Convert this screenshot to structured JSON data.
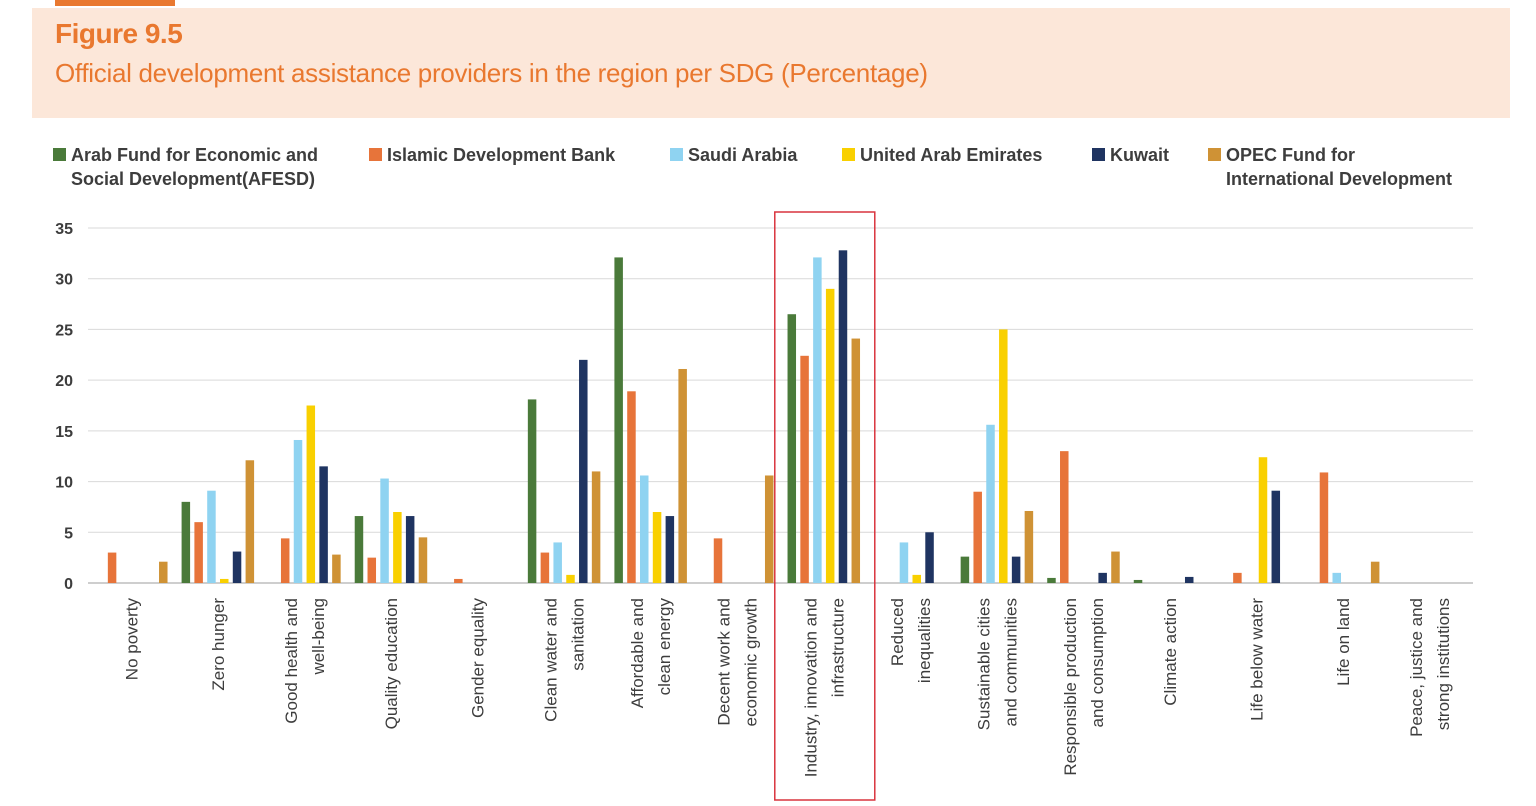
{
  "header": {
    "figure_label": "Figure 9.5",
    "title": "Official development assistance providers in the region per SDG (Percentage)"
  },
  "legend": [
    {
      "line1": "Arab Fund for Economic and",
      "line2": "Social Development(AFESD)",
      "color": "#4a7a3a"
    },
    {
      "line1": "Islamic Development Bank",
      "line2": "",
      "color": "#e7743a"
    },
    {
      "line1": "Saudi Arabia",
      "line2": "",
      "color": "#8fd3f1"
    },
    {
      "line1": "United Arab Emirates",
      "line2": "",
      "color": "#f9d000"
    },
    {
      "line1": "Kuwait",
      "line2": "",
      "color": "#1f3461"
    },
    {
      "line1": "OPEC Fund for",
      "line2": "International Development",
      "color": "#cf9235"
    }
  ],
  "chart_data": {
    "type": "bar",
    "categories": [
      [
        "No poverty"
      ],
      [
        "Zero hunger"
      ],
      [
        "Good health and",
        "well-being"
      ],
      [
        "Quality education"
      ],
      [
        "Gender equality"
      ],
      [
        "Clean water and",
        "sanitation"
      ],
      [
        "Affordable and",
        "clean energy"
      ],
      [
        "Decent work and",
        "economic growth"
      ],
      [
        "Industry, innovation and",
        "infrastructure"
      ],
      [
        "Reduced",
        "inequalities"
      ],
      [
        "Sustainable cities",
        "and communities"
      ],
      [
        "Responsible production",
        "and consumption"
      ],
      [
        "Climate action"
      ],
      [
        "Life below water"
      ],
      [
        "Life on land"
      ],
      [
        "Peace, justice and",
        "strong institutions"
      ]
    ],
    "series": [
      {
        "name": "Arab Fund for Economic and Social Development(AFESD)",
        "color": "#4a7a3a",
        "values": [
          0,
          8,
          0,
          6.6,
          0,
          18.1,
          32.1,
          0,
          26.5,
          0,
          2.6,
          0.5,
          0.3,
          0,
          0,
          0
        ]
      },
      {
        "name": "Islamic Development Bank",
        "color": "#e7743a",
        "values": [
          3,
          6,
          4.4,
          2.5,
          0.4,
          3,
          18.9,
          4.4,
          22.4,
          0,
          9,
          13,
          0,
          1,
          10.9,
          0
        ]
      },
      {
        "name": "Saudi Arabia",
        "color": "#8fd3f1",
        "values": [
          0,
          9.1,
          14.1,
          10.3,
          0,
          4,
          10.6,
          0,
          32.1,
          4,
          15.6,
          0,
          0,
          0,
          1,
          0
        ]
      },
      {
        "name": "United Arab Emirates",
        "color": "#f9d000",
        "values": [
          0,
          0.4,
          17.5,
          7,
          0,
          0.8,
          7,
          0,
          29,
          0.8,
          25,
          0,
          0,
          12.4,
          0,
          0
        ]
      },
      {
        "name": "Kuwait",
        "color": "#1f3461",
        "values": [
          0,
          3.1,
          11.5,
          6.6,
          0,
          22,
          6.6,
          0,
          32.8,
          5,
          2.6,
          1,
          0.6,
          9.1,
          0,
          0
        ]
      },
      {
        "name": "OPEC Fund for International Development",
        "color": "#cf9235",
        "values": [
          2.1,
          12.1,
          2.8,
          4.5,
          0,
          11,
          21.1,
          10.6,
          24.1,
          0,
          7.1,
          3.1,
          0,
          0,
          2.1,
          0
        ]
      }
    ],
    "ylim": [
      0,
      35
    ],
    "yticks": [
      0,
      5,
      10,
      15,
      20,
      25,
      30,
      35
    ],
    "highlighted_category": "Industry, innovation and infrastructure",
    "highlight_color": "#d9343e",
    "grid": true
  }
}
